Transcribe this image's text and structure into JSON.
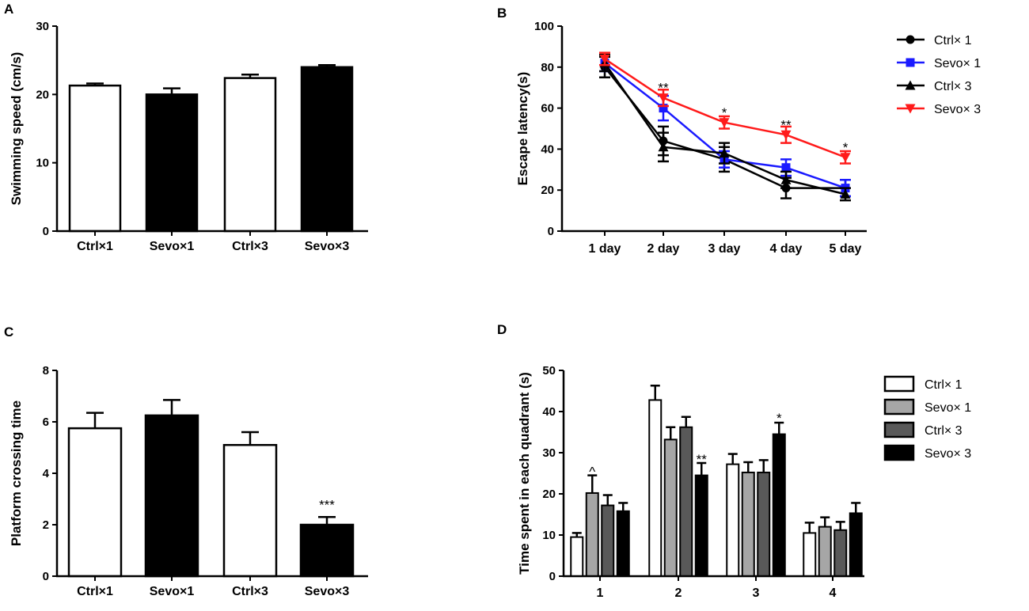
{
  "chart_data": [
    {
      "panel": "A",
      "type": "bar",
      "categories": [
        "Ctrl×1",
        "Sevo×1",
        "Ctrl×3",
        "Sevo×3"
      ],
      "values": [
        21.3,
        20.0,
        22.4,
        24.0
      ],
      "errors": [
        0.3,
        0.9,
        0.5,
        0.3
      ],
      "fills": [
        "white",
        "black",
        "white",
        "black"
      ],
      "ylabel": "Swimming speed (cm/s)",
      "ylim": [
        0,
        30
      ],
      "yticks": [
        0,
        10,
        20,
        30
      ]
    },
    {
      "panel": "B",
      "type": "line",
      "categories": [
        "1 day",
        "2 day",
        "3 day",
        "4 day",
        "5 day"
      ],
      "ylabel": "Escape latency(s)",
      "ylim": [
        0,
        100
      ],
      "yticks": [
        0,
        20,
        40,
        60,
        80,
        100
      ],
      "legend_position": "right",
      "series": [
        {
          "name": "Ctrl× 1",
          "color": "#000000",
          "marker": "circle",
          "values": [
            80,
            44,
            35,
            21,
            21
          ],
          "errors": [
            5,
            7,
            6,
            5,
            4
          ]
        },
        {
          "name": "Sevo× 1",
          "color": "#1a1aff",
          "marker": "square",
          "values": [
            82,
            60,
            35,
            31,
            21
          ],
          "errors": [
            4,
            6,
            4,
            4,
            4
          ]
        },
        {
          "name": "Ctrl× 3",
          "color": "#000000",
          "marker": "triangle",
          "values": [
            82,
            41,
            38,
            25,
            18
          ],
          "errors": [
            4,
            7,
            5,
            4,
            3
          ]
        },
        {
          "name": "Sevo× 3",
          "color": "#ff1a1a",
          "marker": "triangle-down",
          "values": [
            84,
            65,
            53,
            47,
            36
          ],
          "errors": [
            3,
            4,
            3,
            4,
            3
          ]
        }
      ],
      "annotations": [
        {
          "category": "2 day",
          "y": 70,
          "text": "**"
        },
        {
          "category": "3 day",
          "y": 58,
          "text": "*"
        },
        {
          "category": "4 day",
          "y": 52,
          "text": "**"
        },
        {
          "category": "5 day",
          "y": 41,
          "text": "*"
        }
      ]
    },
    {
      "panel": "C",
      "type": "bar",
      "categories": [
        "Ctrl×1",
        "Sevo×1",
        "Ctrl×3",
        "Sevo×3"
      ],
      "values": [
        5.75,
        6.25,
        5.1,
        2.0
      ],
      "errors": [
        0.6,
        0.6,
        0.5,
        0.3
      ],
      "fills": [
        "white",
        "black",
        "white",
        "black"
      ],
      "ylabel": "Platform crossing time",
      "ylim": [
        0,
        8
      ],
      "yticks": [
        0,
        2,
        4,
        6,
        8
      ],
      "annotations": [
        {
          "category": "Sevo×3",
          "y": 2.6,
          "text": "***"
        }
      ]
    },
    {
      "panel": "D",
      "type": "bar",
      "categories": [
        "1",
        "2",
        "3",
        "4"
      ],
      "ylabel": "Time spent in each quadrant (s)",
      "ylim": [
        0,
        50
      ],
      "yticks": [
        0,
        10,
        20,
        30,
        40,
        50
      ],
      "legend_position": "right",
      "series": [
        {
          "name": "Ctrl× 1",
          "color": "#ffffff",
          "values": [
            9.5,
            42.8,
            27.2,
            10.5
          ],
          "errors": [
            1.0,
            3.5,
            2.5,
            2.5
          ]
        },
        {
          "name": "Sevo× 1",
          "color": "#a6a6a6",
          "values": [
            20.2,
            33.2,
            25.2,
            12.0
          ],
          "errors": [
            4.3,
            3.0,
            2.5,
            2.3
          ]
        },
        {
          "name": "Ctrl× 3",
          "color": "#595959",
          "values": [
            17.2,
            36.2,
            25.2,
            11.2
          ],
          "errors": [
            2.5,
            2.5,
            3.0,
            2.0
          ]
        },
        {
          "name": "Sevo× 3",
          "color": "#000000",
          "values": [
            15.8,
            24.5,
            34.5,
            15.3
          ],
          "errors": [
            2.0,
            3.0,
            2.8,
            2.5
          ]
        }
      ],
      "annotations": [
        {
          "category": "1",
          "series": 1,
          "y": 25.5,
          "text": "^"
        },
        {
          "category": "2",
          "series": 3,
          "y": 28.5,
          "text": "**"
        },
        {
          "category": "3",
          "series": 3,
          "y": 38.5,
          "text": "*"
        }
      ]
    }
  ]
}
